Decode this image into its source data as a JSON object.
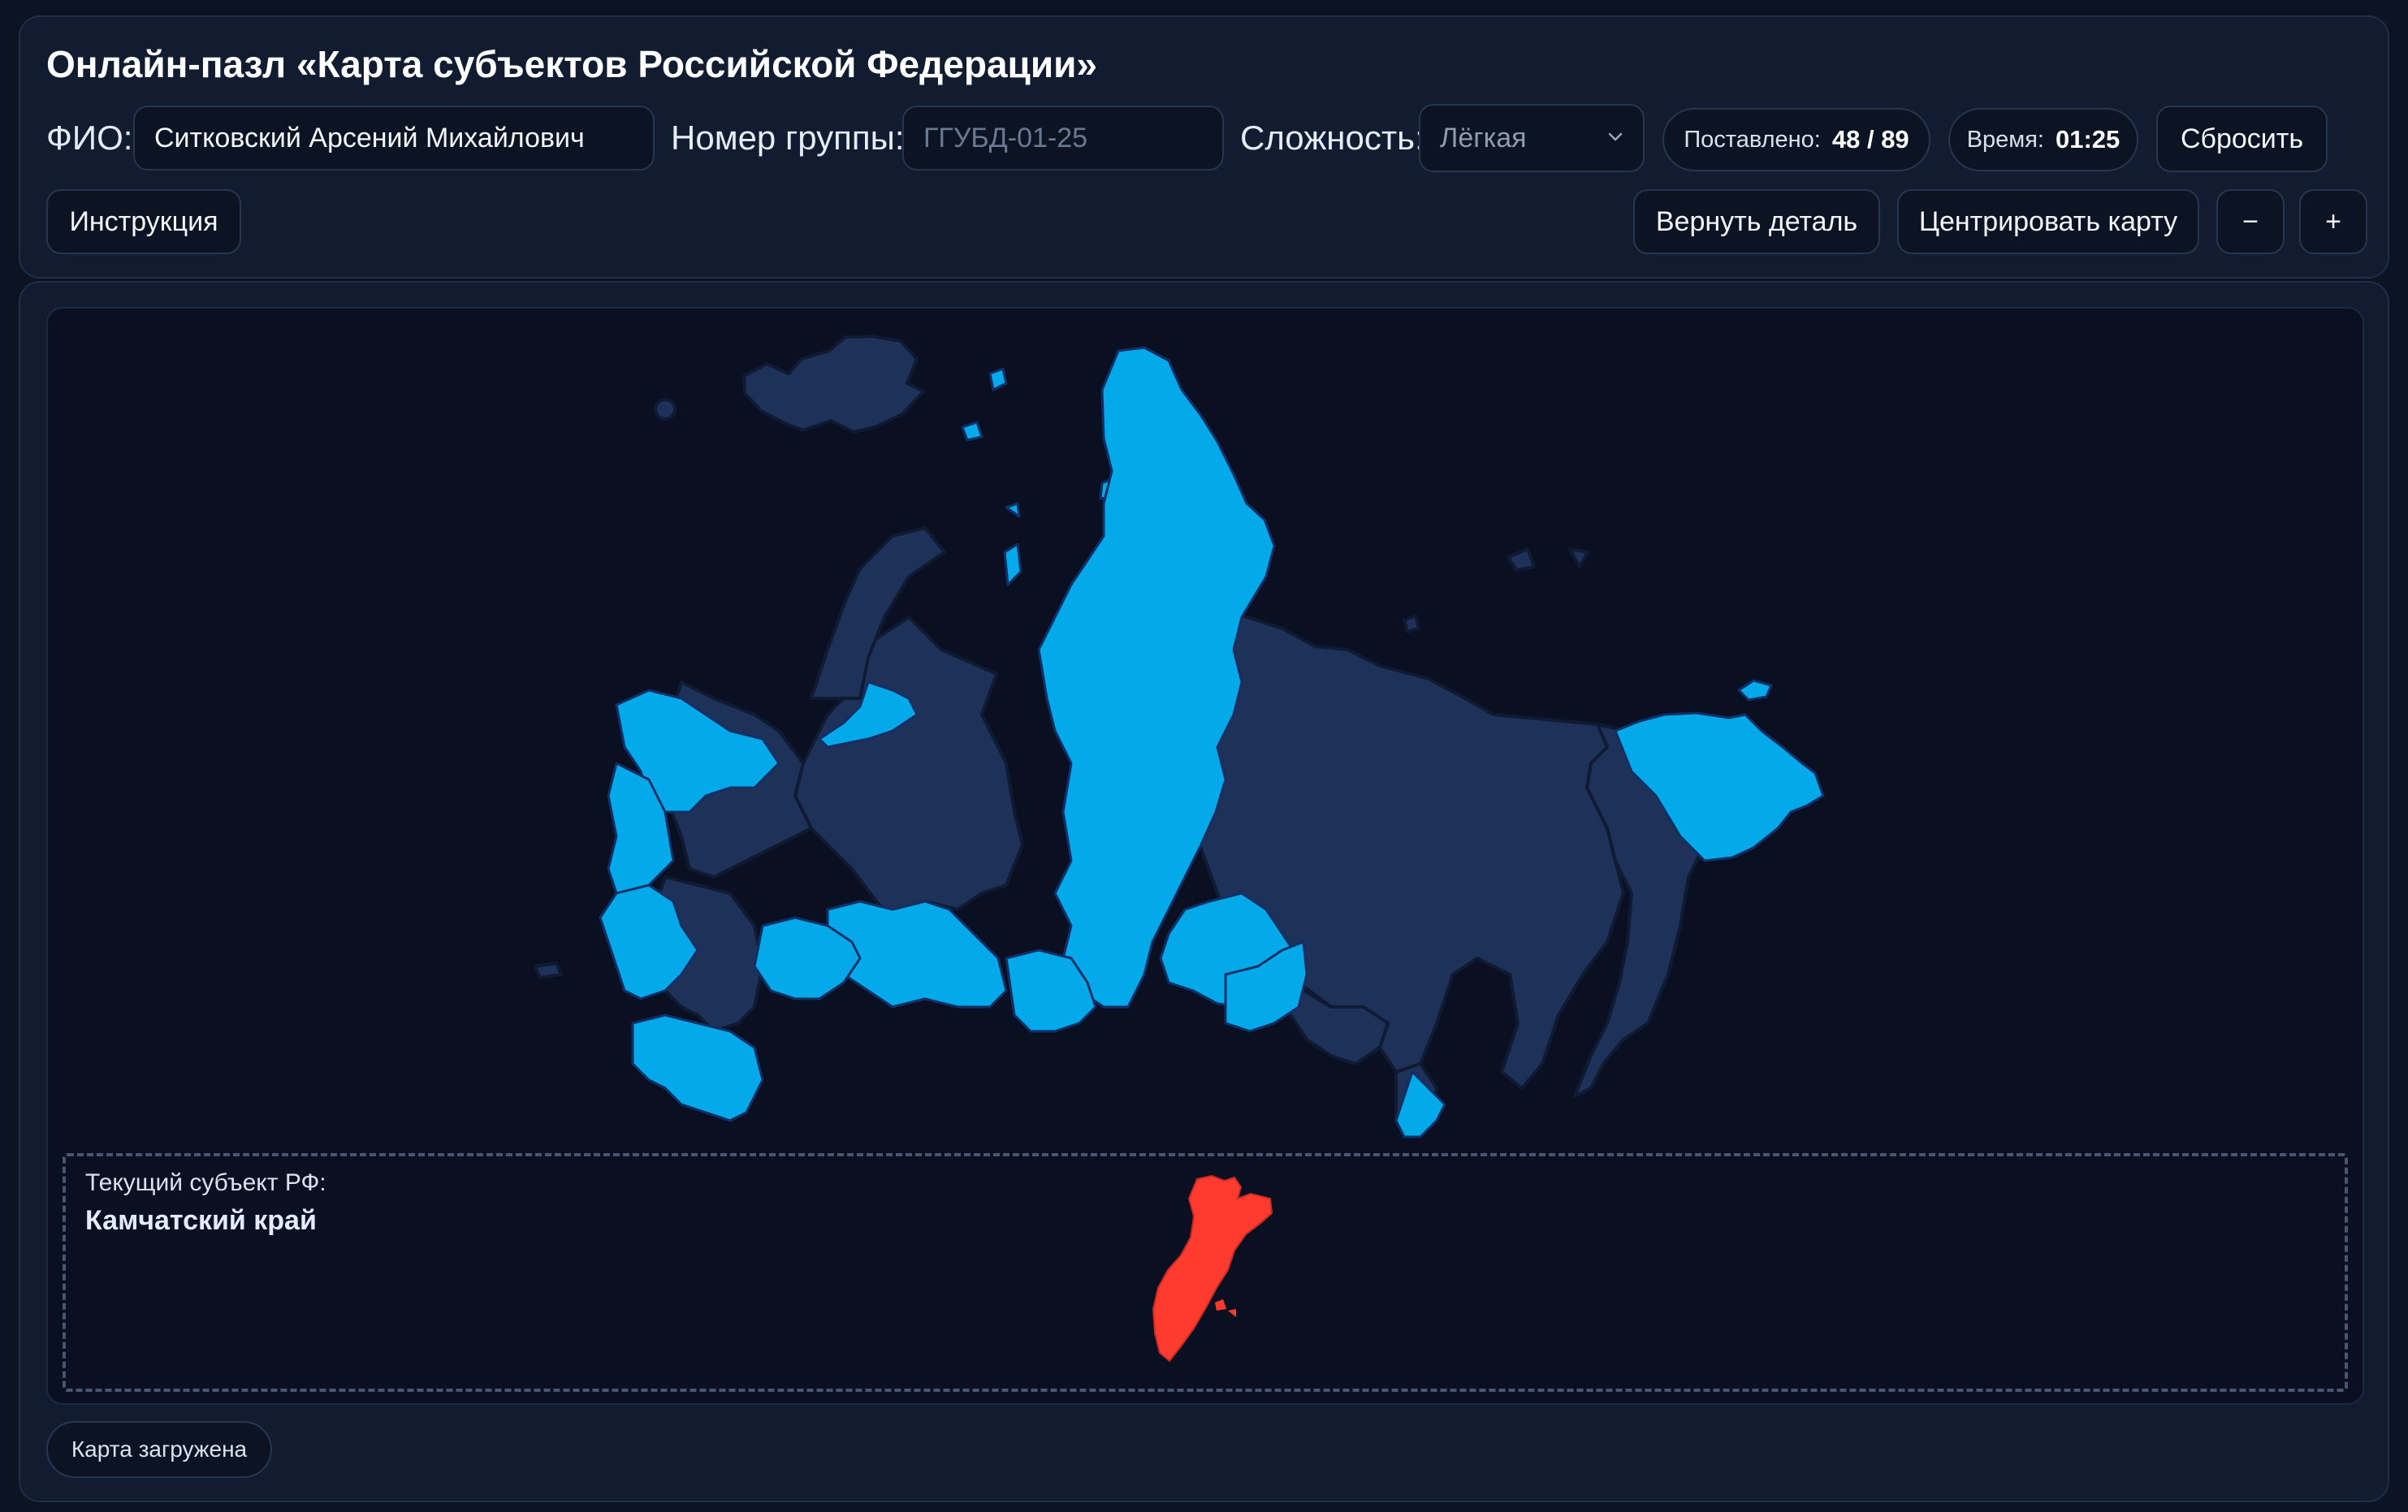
{
  "header": {
    "title": "Онлайн-пазл «Карта субъектов Российской Федерации»",
    "fio_label": "ФИО:",
    "fio_value": "Ситковский Арсений Михайлович",
    "group_label": "Номер группы:",
    "group_placeholder": "ГГУБД-01-25",
    "difficulty_label": "Сложность:",
    "difficulty_value": "Лёгкая",
    "placed_label": "Поставлено:",
    "placed_value": "48 / 89",
    "time_label": "Время:",
    "time_value": "01:25",
    "reset_label": "Сбросить"
  },
  "toolbar": {
    "instructions_label": "Инструкция",
    "return_piece_label": "Вернуть деталь",
    "center_map_label": "Центрировать карту",
    "zoom_out_label": "−",
    "zoom_in_label": "+"
  },
  "tray": {
    "label": "Текущий субъект РФ:",
    "current_subject": "Камчатский край"
  },
  "status": {
    "text": "Карта загружена"
  },
  "colors": {
    "background": "#0c1322",
    "panel": "#121c30",
    "region_placed": "#04a9ea",
    "region_empty": "#1e3158",
    "active_piece": "#ff3b2f"
  },
  "icons": {
    "difficulty_select": "chevron-down-icon"
  }
}
